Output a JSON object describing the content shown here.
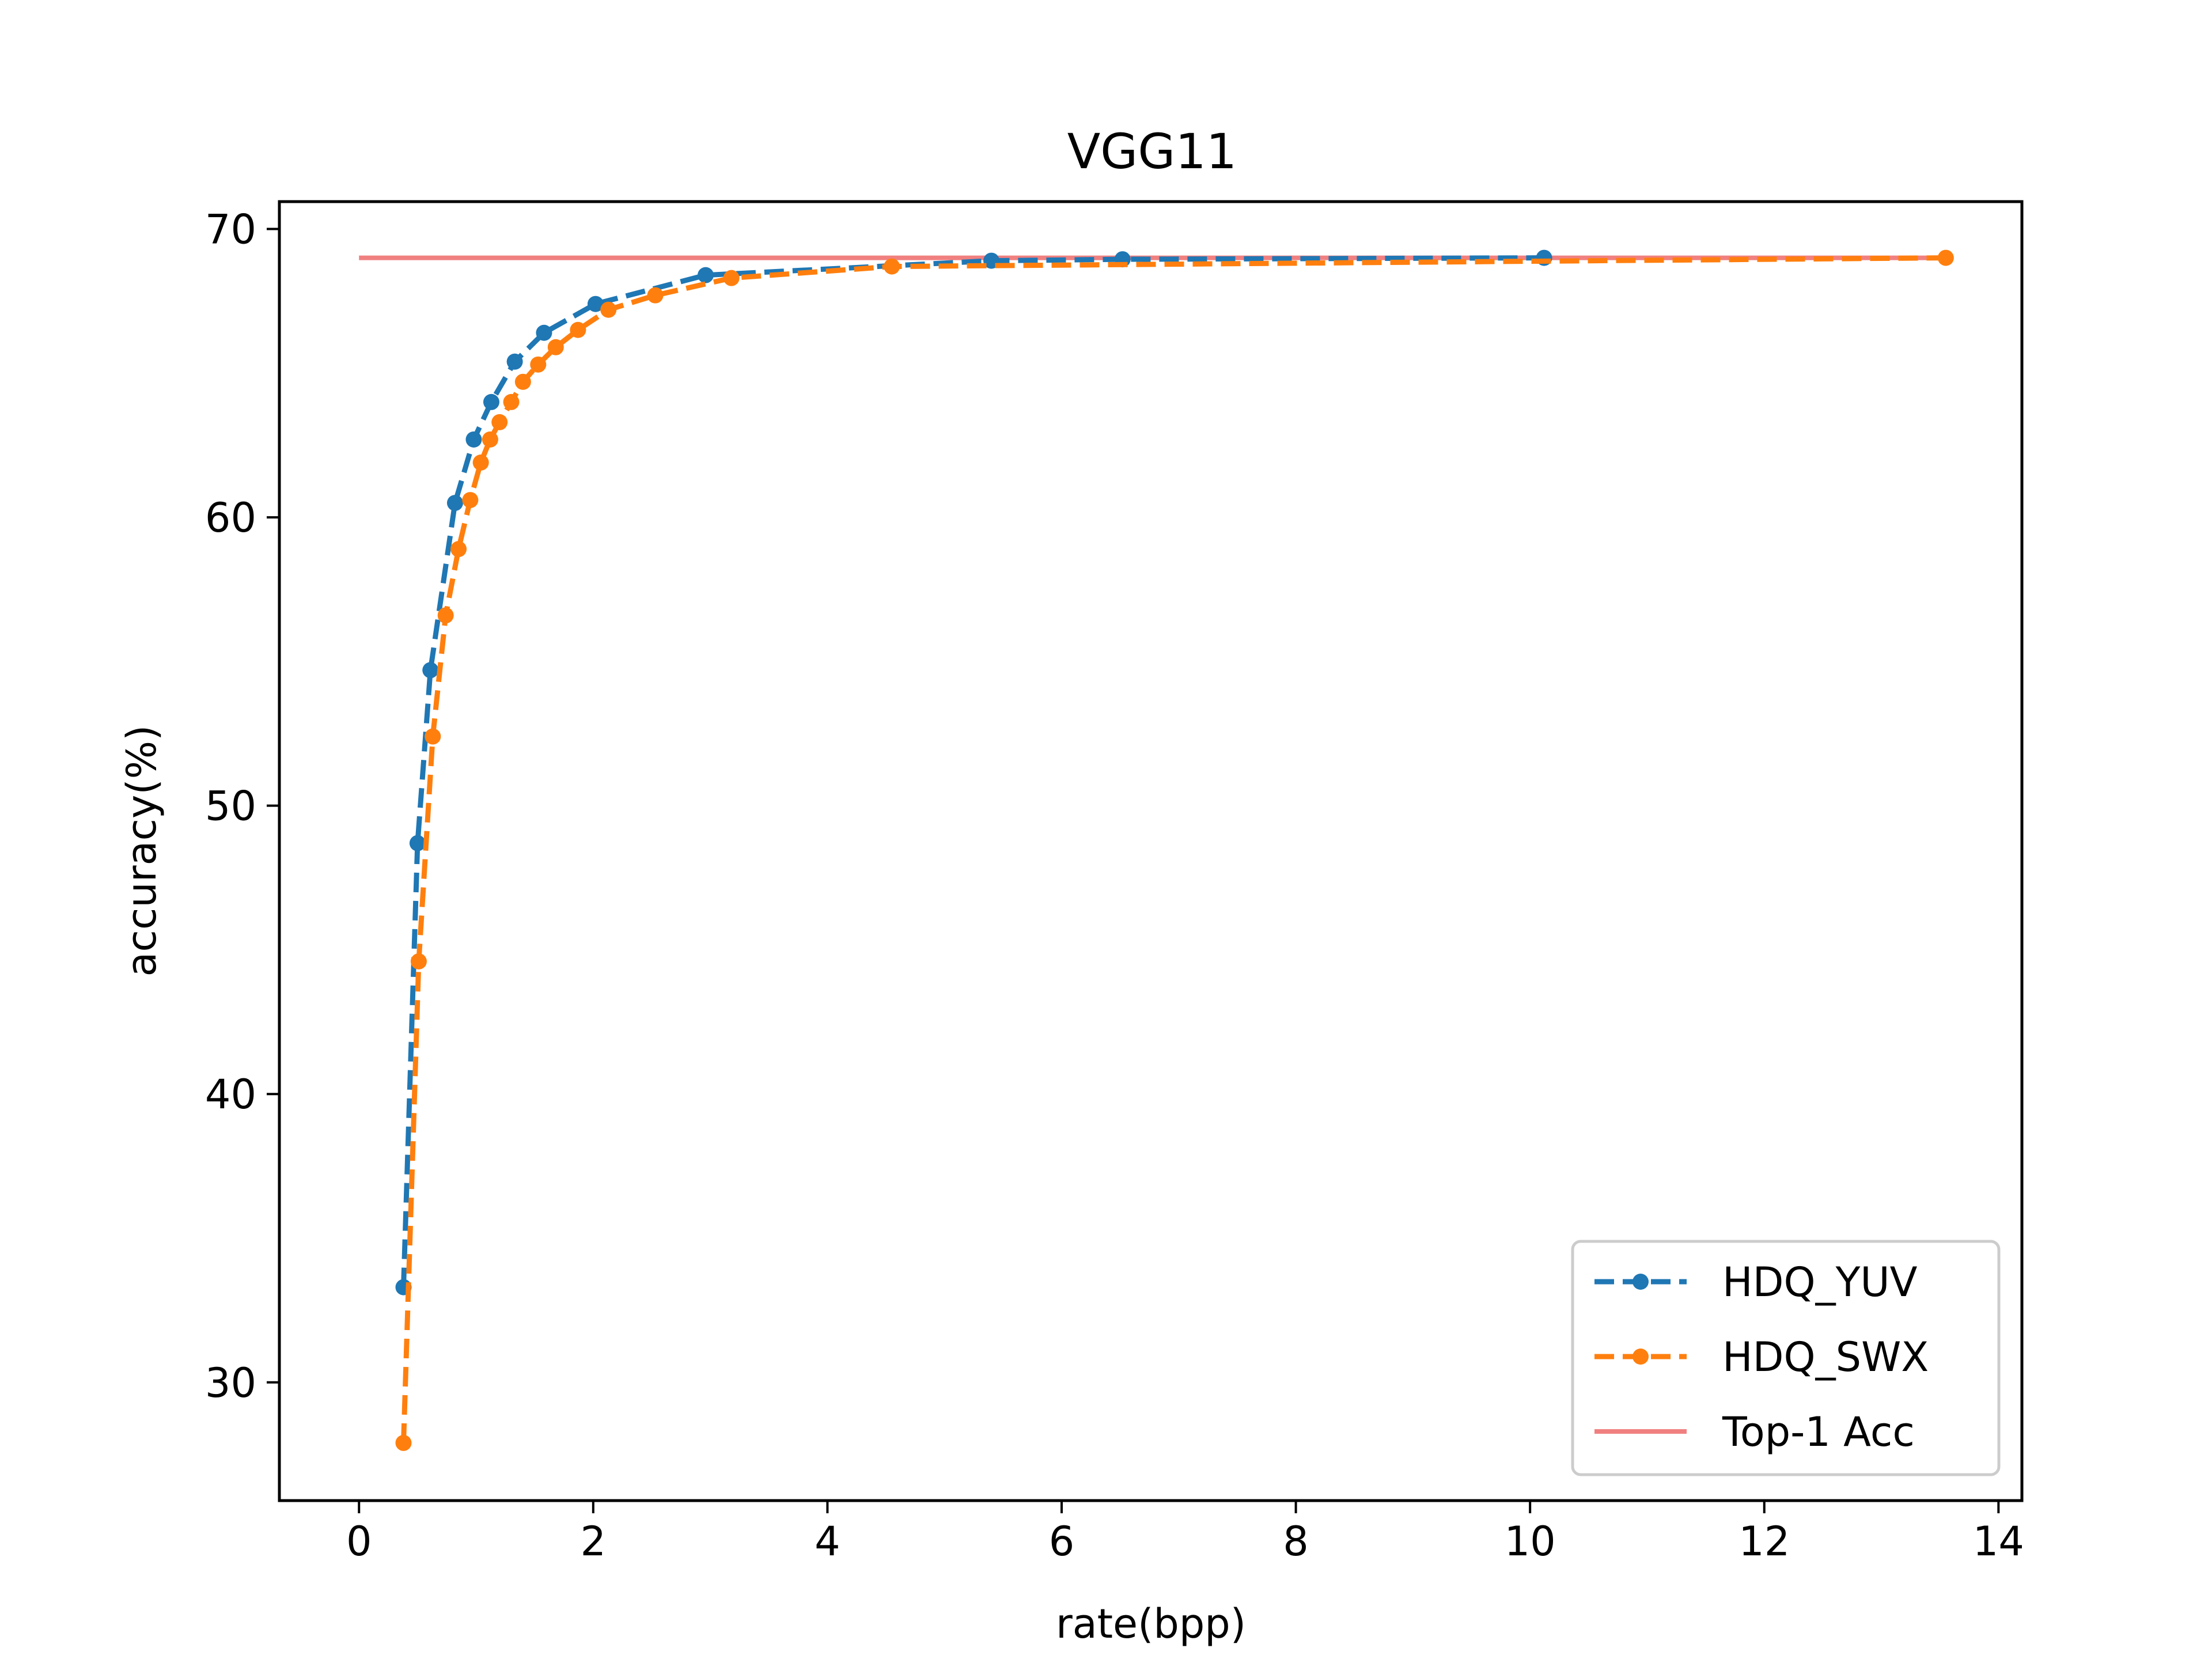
{
  "chart_data": {
    "type": "line",
    "title": "VGG11",
    "xlabel": "rate(bpp)",
    "ylabel": "accuracy(%)",
    "xlim": [
      -0.68,
      14.2
    ],
    "ylim": [
      25.9,
      70.95
    ],
    "xticks": [
      0,
      2,
      4,
      6,
      8,
      10,
      12,
      14
    ],
    "yticks": [
      30,
      40,
      50,
      60,
      70
    ],
    "grid": false,
    "legend_position": "lower right",
    "series": [
      {
        "name": "HDQ_YUV",
        "color": "#1f77b4",
        "style": "dashed",
        "marker": "circle",
        "x": [
          0.38,
          0.5,
          0.61,
          0.82,
          0.98,
          1.13,
          1.33,
          1.58,
          2.02,
          2.96,
          5.4,
          6.52,
          10.12
        ],
        "y": [
          33.3,
          48.7,
          54.7,
          60.5,
          62.7,
          64.0,
          65.4,
          66.4,
          67.4,
          68.4,
          68.9,
          68.95,
          69.0
        ]
      },
      {
        "name": "HDQ_SWX",
        "color": "#ff7f0e",
        "style": "dashed",
        "marker": "circle",
        "x": [
          0.38,
          0.51,
          0.63,
          0.74,
          0.85,
          0.95,
          1.04,
          1.12,
          1.2,
          1.3,
          1.4,
          1.53,
          1.68,
          1.87,
          2.13,
          2.53,
          3.18,
          4.55,
          13.55
        ],
        "y": [
          27.9,
          44.6,
          52.4,
          56.6,
          58.9,
          60.6,
          61.9,
          62.7,
          63.3,
          64.0,
          64.7,
          65.3,
          65.9,
          66.5,
          67.2,
          67.7,
          68.3,
          68.7,
          69.0
        ]
      },
      {
        "name": "Top-1 Acc",
        "color": "#f08080",
        "style": "solid",
        "marker": "none",
        "x": [
          0.0,
          13.55
        ],
        "y": [
          69.0,
          69.0
        ]
      }
    ]
  }
}
